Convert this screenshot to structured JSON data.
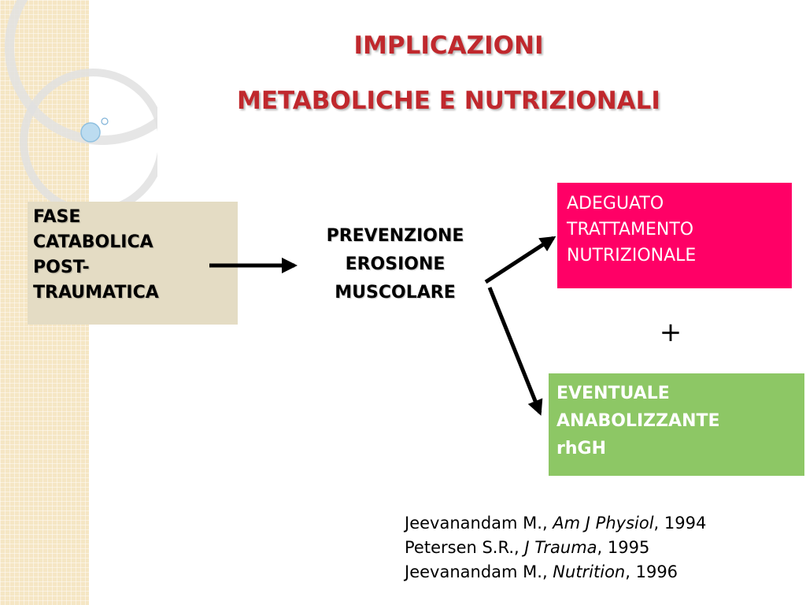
{
  "title": {
    "line1": "IMPLICAZIONI",
    "line2": "METABOLICHE E NUTRIZIONALI"
  },
  "diagram": {
    "fase": [
      "FASE",
      "CATABOLICA",
      "POST-",
      "TRAUMATICA"
    ],
    "prevenzione": [
      "PREVENZIONE",
      "EROSIONE",
      "MUSCOLARE"
    ],
    "adeguato": [
      "ADEGUATO",
      "TRATTAMENTO",
      "NUTRIZIONALE"
    ],
    "plus": "+",
    "eventuale": [
      "EVENTUALE",
      "ANABOLIZZANTE",
      "rhGH"
    ]
  },
  "references": [
    {
      "author": "Jeevanandam M., ",
      "journal": "Am J Physiol",
      "year": ", 1994"
    },
    {
      "author": "Petersen S.R., ",
      "journal": "J Trauma",
      "year": ", 1995"
    },
    {
      "author": "Jeevanandam M., ",
      "journal": "Nutrition",
      "year": ", 1996"
    }
  ],
  "colors": {
    "title": "#c0282d",
    "adeguato_bg": "#ff0066",
    "eventuale_bg": "#8dc765",
    "fase_bg": "#e4dcc4",
    "side_strip": "#f5e6c4"
  }
}
